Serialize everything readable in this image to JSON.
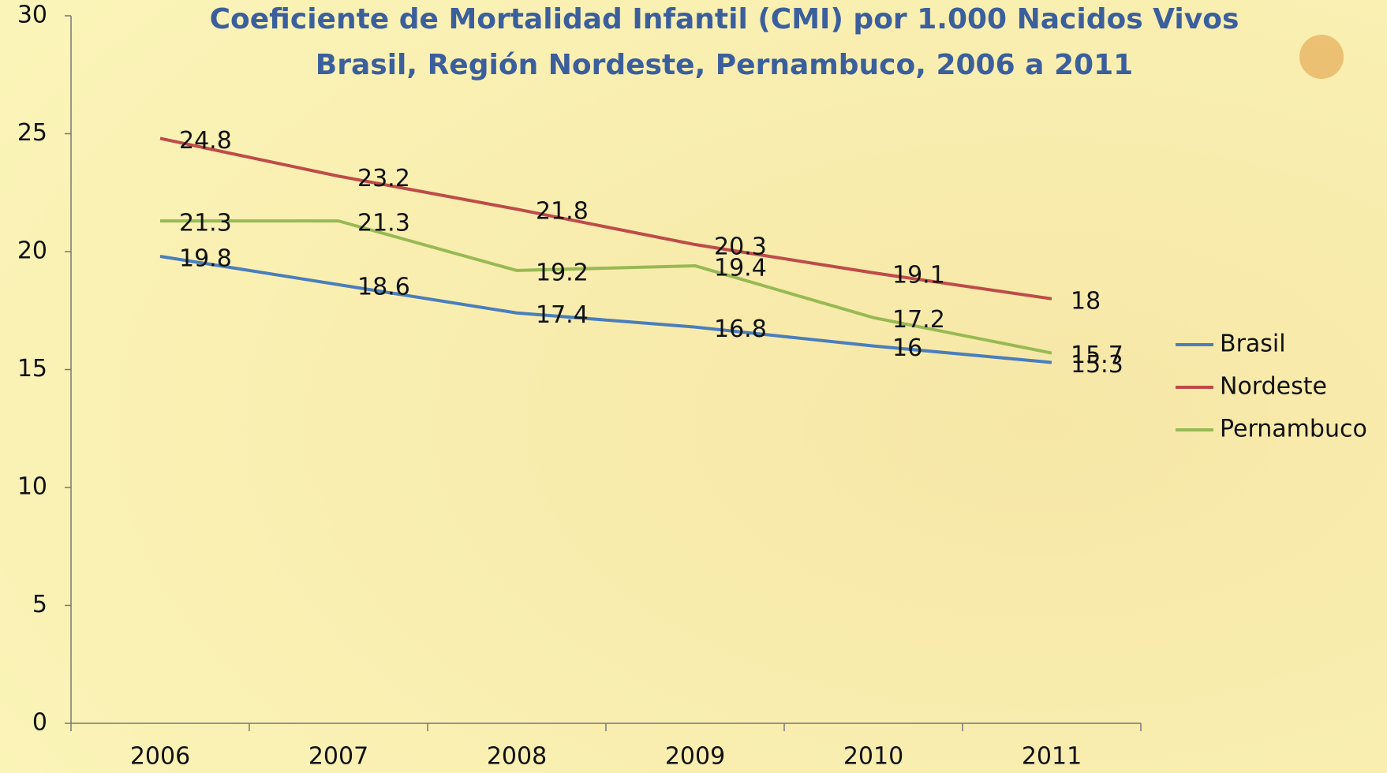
{
  "chart_data": {
    "type": "line",
    "title": "Coeficiente de Mortalidad Infantil (CMI) por 1.000 Nacidos Vivos",
    "subtitle": "Brasil, Región Nordeste, Pernambuco, 2006 a 2011",
    "categories": [
      "2006",
      "2007",
      "2008",
      "2009",
      "2010",
      "2011"
    ],
    "series": [
      {
        "name": "Brasil",
        "color": "#4a7ebb",
        "values": [
          19.8,
          18.6,
          17.4,
          16.8,
          16,
          15.3
        ]
      },
      {
        "name": "Nordeste",
        "color": "#be4b48",
        "values": [
          24.8,
          23.2,
          21.8,
          20.3,
          19.1,
          18
        ]
      },
      {
        "name": "Pernambuco",
        "color": "#98b954",
        "values": [
          21.3,
          21.3,
          19.2,
          19.4,
          17.2,
          15.7
        ]
      }
    ],
    "ylim": [
      0,
      30
    ],
    "yticks": [
      0,
      5,
      10,
      15,
      20,
      25,
      30
    ],
    "grid": false,
    "legend": "right"
  }
}
